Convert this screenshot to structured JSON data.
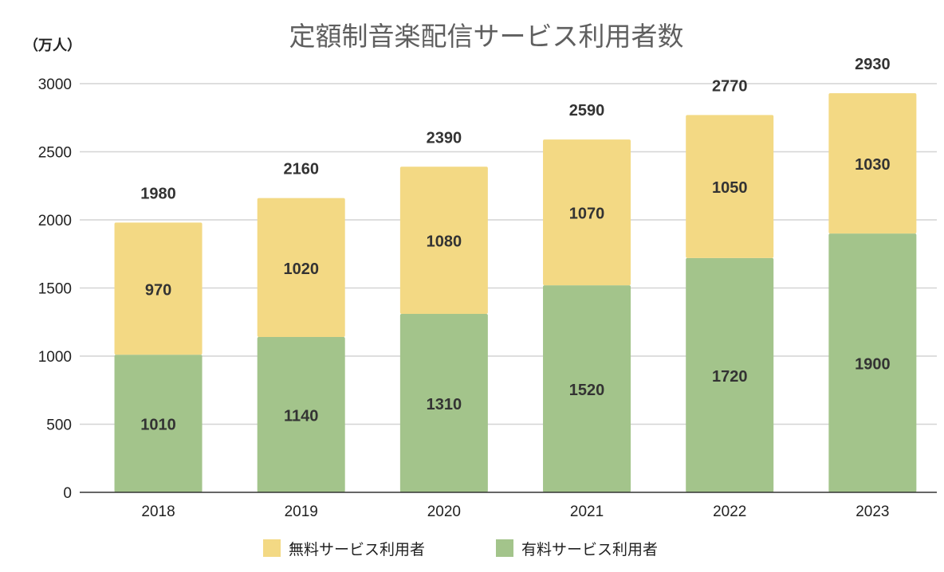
{
  "chart_data": {
    "type": "bar",
    "stacked": true,
    "title": "定額制音楽配信サービス利用者数",
    "unit_label": "（万人）",
    "categories": [
      "2018",
      "2019",
      "2020",
      "2021",
      "2022",
      "2023"
    ],
    "series": [
      {
        "name": "有料サービス利用者",
        "color": "#a3c48b",
        "values": [
          1010,
          1140,
          1310,
          1520,
          1720,
          1900
        ]
      },
      {
        "name": "無料サービス利用者",
        "color": "#f3d984",
        "values": [
          970,
          1020,
          1080,
          1070,
          1050,
          1030
        ]
      }
    ],
    "totals": [
      1980,
      2160,
      2390,
      2590,
      2770,
      2930
    ],
    "ylim": [
      0,
      3000
    ],
    "yticks": [
      0,
      500,
      1000,
      1500,
      2000,
      2500,
      3000
    ],
    "grid": true,
    "legend_position": "bottom",
    "legend_order": [
      "無料サービス利用者",
      "有料サービス利用者"
    ]
  }
}
